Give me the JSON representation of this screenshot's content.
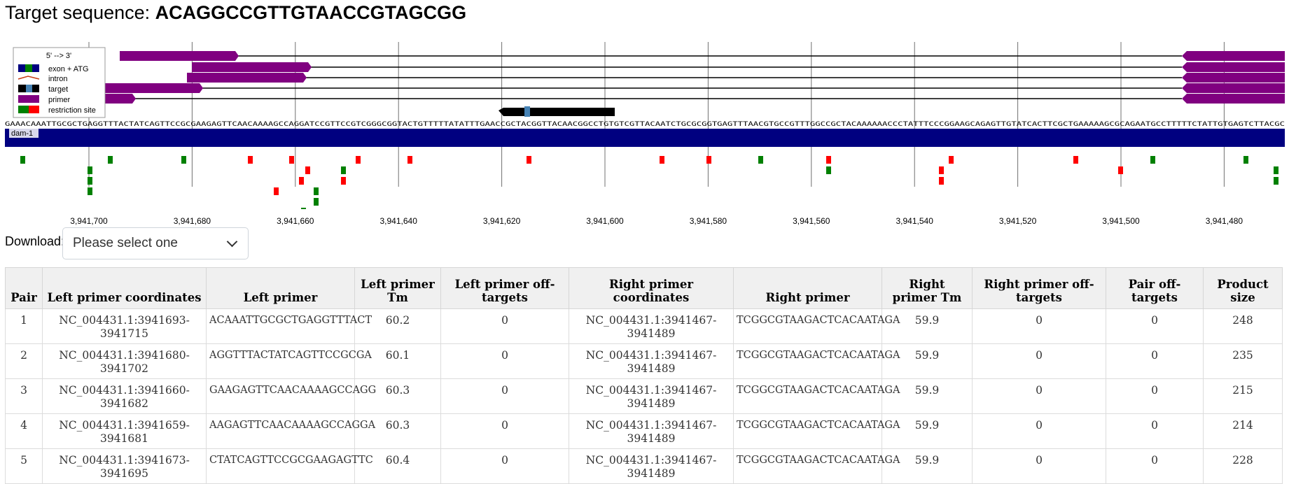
{
  "header": {
    "prefix": "Target sequence: ",
    "sequence": "ACAGGCCGTTGTAACCGTAGCGG"
  },
  "legend": {
    "title": "5' --> 3'",
    "items": [
      {
        "label": "exon + ATG",
        "icon": "exon-icon"
      },
      {
        "label": "intron",
        "icon": "intron-icon"
      },
      {
        "label": "target",
        "icon": "target-icon"
      },
      {
        "label": "primer",
        "icon": "primer-icon"
      },
      {
        "label": "restriction site",
        "icon": "restriction-site-icon"
      }
    ]
  },
  "genome": {
    "gene_name": "dam-1",
    "sequence_strip": "GAAACAAATTGCGCTGAGGTTTACTATCAGTTCCGCGAAGAGTTCAACAAAAGCCAGGATCCGTTCCGTCGGGCGGTACTGTTTTTATATTTGAACCGCTACGGTTACAACGGCCTGTGTCGTTACAATCTGCGCGGTGAGTTTAACGTGCCGTTTGGCCGCTACAAAAAACCCTATTTCCCGGAAGCAGAGTTGTATCACTTCGCTGAAAAAGCGCAGAATGCCTTTTTCTATTGTGAGTCTTACGC",
    "ticks": [
      "3,941,700",
      "3,941,680",
      "3,941,660",
      "3,941,640",
      "3,941,620",
      "3,941,600",
      "3,941,580",
      "3,941,560",
      "3,941,540",
      "3,941,520",
      "3,941,500",
      "3,941,480"
    ],
    "colors": {
      "exon": "#000080",
      "primer": "#800080",
      "target": "#000000",
      "target_site": "#4682b4",
      "restriction_green": "#008000",
      "restriction_red": "#ff0000",
      "intron": "#c83c14"
    }
  },
  "download": {
    "label": "Download:",
    "placeholder": "Please select one"
  },
  "table": {
    "headers": [
      "Pair",
      "Left primer coordinates",
      "Left primer",
      "Left primer Tm",
      "Left primer off-targets",
      "Right primer coordinates",
      "Right primer",
      "Right primer Tm",
      "Right primer off-targets",
      "Pair off-targets",
      "Product size"
    ],
    "rows": [
      [
        "1",
        "NC_004431.1:3941693-3941715",
        "ACAAATTGCGCTGAGGTTTACT",
        "60.2",
        "0",
        "NC_004431.1:3941467-3941489",
        "TCGGCGTAAGACTCACAATAGA",
        "59.9",
        "0",
        "0",
        "248"
      ],
      [
        "2",
        "NC_004431.1:3941680-3941702",
        "AGGTTTACTATCAGTTCCGCGA",
        "60.1",
        "0",
        "NC_004431.1:3941467-3941489",
        "TCGGCGTAAGACTCACAATAGA",
        "59.9",
        "0",
        "0",
        "235"
      ],
      [
        "3",
        "NC_004431.1:3941660-3941682",
        "GAAGAGTTCAACAAAAGCCAGG",
        "60.3",
        "0",
        "NC_004431.1:3941467-3941489",
        "TCGGCGTAAGACTCACAATAGA",
        "59.9",
        "0",
        "0",
        "215"
      ],
      [
        "4",
        "NC_004431.1:3941659-3941681",
        "AAGAGTTCAACAAAAGCCAGGA",
        "60.3",
        "0",
        "NC_004431.1:3941467-3941489",
        "TCGGCGTAAGACTCACAATAGA",
        "59.9",
        "0",
        "0",
        "214"
      ],
      [
        "5",
        "NC_004431.1:3941673-3941695",
        "CTATCAGTTCCGCGAAGAGTTC",
        "60.4",
        "0",
        "NC_004431.1:3941467-3941489",
        "TCGGCGTAAGACTCACAATAGA",
        "59.9",
        "0",
        "0",
        "228"
      ]
    ]
  }
}
